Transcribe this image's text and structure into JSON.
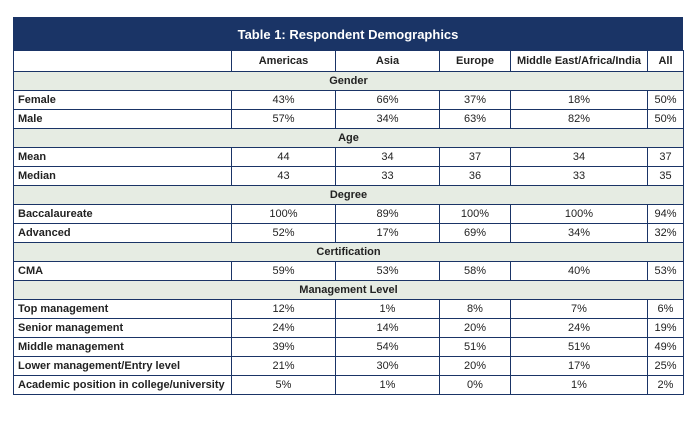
{
  "table": {
    "title": "Table 1: Respondent Demographics",
    "columns": [
      "",
      "Americas",
      "Asia",
      "Europe",
      "Middle East/Africa/India",
      "All"
    ],
    "sections": [
      {
        "name": "Gender",
        "rows": [
          {
            "label": "Female",
            "values": [
              "43%",
              "66%",
              "37%",
              "18%",
              "50%"
            ]
          },
          {
            "label": "Male",
            "values": [
              "57%",
              "34%",
              "63%",
              "82%",
              "50%"
            ]
          }
        ]
      },
      {
        "name": "Age",
        "rows": [
          {
            "label": "Mean",
            "values": [
              "44",
              "34",
              "37",
              "34",
              "37"
            ]
          },
          {
            "label": "Median",
            "values": [
              "43",
              "33",
              "36",
              "33",
              "35"
            ]
          }
        ]
      },
      {
        "name": "Degree",
        "rows": [
          {
            "label": "Baccalaureate",
            "values": [
              "100%",
              "89%",
              "100%",
              "100%",
              "94%"
            ]
          },
          {
            "label": "Advanced",
            "values": [
              "52%",
              "17%",
              "69%",
              "34%",
              "32%"
            ]
          }
        ]
      },
      {
        "name": "Certification",
        "rows": [
          {
            "label": "CMA",
            "values": [
              "59%",
              "53%",
              "58%",
              "40%",
              "53%"
            ]
          }
        ]
      },
      {
        "name": "Management Level",
        "rows": [
          {
            "label": "Top management",
            "values": [
              "12%",
              "1%",
              "8%",
              "7%",
              "6%"
            ]
          },
          {
            "label": "Senior management",
            "values": [
              "24%",
              "14%",
              "20%",
              "24%",
              "19%"
            ]
          },
          {
            "label": "Middle management",
            "values": [
              "39%",
              "54%",
              "51%",
              "51%",
              "49%"
            ]
          },
          {
            "label": "Lower management/Entry level",
            "values": [
              "21%",
              "30%",
              "20%",
              "17%",
              "25%"
            ]
          },
          {
            "label": "Academic position in college/university",
            "values": [
              "5%",
              "1%",
              "0%",
              "1%",
              "2%"
            ]
          }
        ]
      }
    ]
  }
}
